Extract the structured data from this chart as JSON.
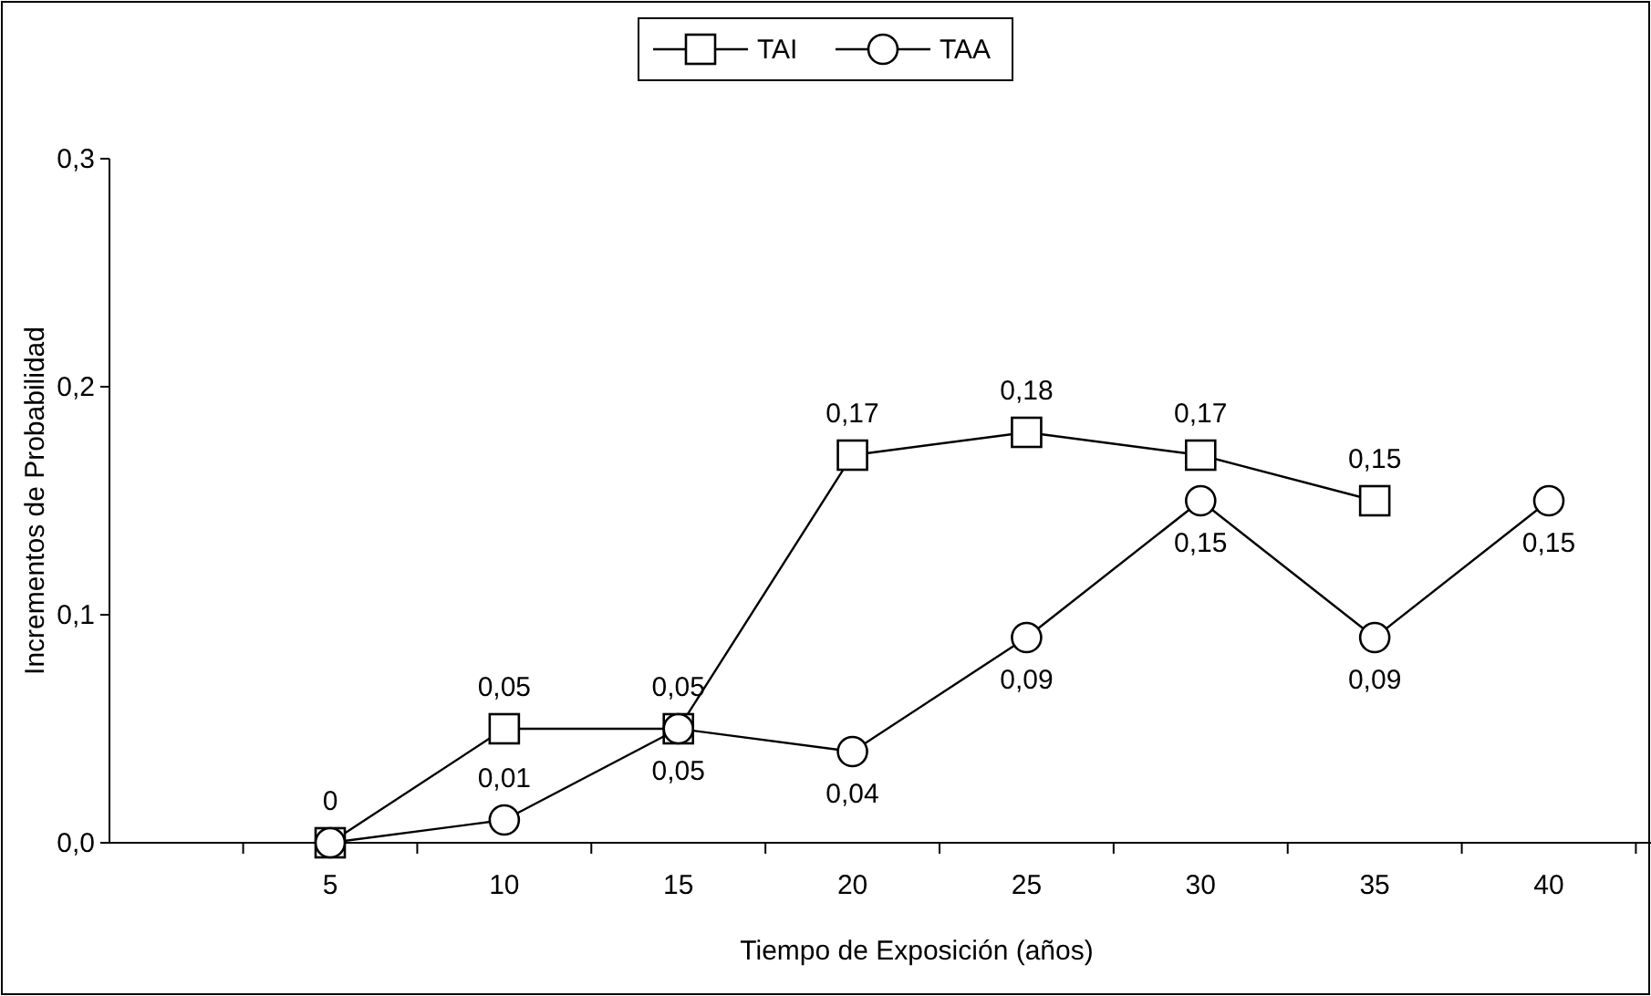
{
  "chart_data": {
    "type": "line",
    "xlabel": "Tiempo de Exposición (años)",
    "ylabel": "Incrementos de Probabilidad",
    "categories": [
      "5",
      "10",
      "15",
      "20",
      "25",
      "30",
      "35",
      "40"
    ],
    "ylim": [
      0,
      0.3
    ],
    "yticks": [
      {
        "value": 0,
        "label": "0,0"
      },
      {
        "value": 0.1,
        "label": "0,1"
      },
      {
        "value": 0.2,
        "label": "0,2"
      },
      {
        "value": 0.3,
        "label": "0,3"
      }
    ],
    "grid": false,
    "legend": "top",
    "line_style": "solid",
    "series": [
      {
        "name": "TAI",
        "color": "#000000",
        "marker": "square",
        "values": [
          0,
          0.05,
          0.05,
          0.17,
          0.18,
          0.17,
          0.15,
          null
        ],
        "value_labels": [
          "0",
          "0,05",
          "0,05",
          "0,17",
          "0,18",
          "0,17",
          "0,15",
          null
        ]
      },
      {
        "name": "TAA",
        "color": "#000000",
        "marker": "circle",
        "values": [
          0,
          0.01,
          0.05,
          0.04,
          0.09,
          0.15,
          0.09,
          0.15
        ],
        "value_labels": [
          null,
          "0,01",
          "0,05",
          "0,04",
          "0,09",
          "0,15",
          "0,09",
          "0,15"
        ]
      }
    ]
  }
}
